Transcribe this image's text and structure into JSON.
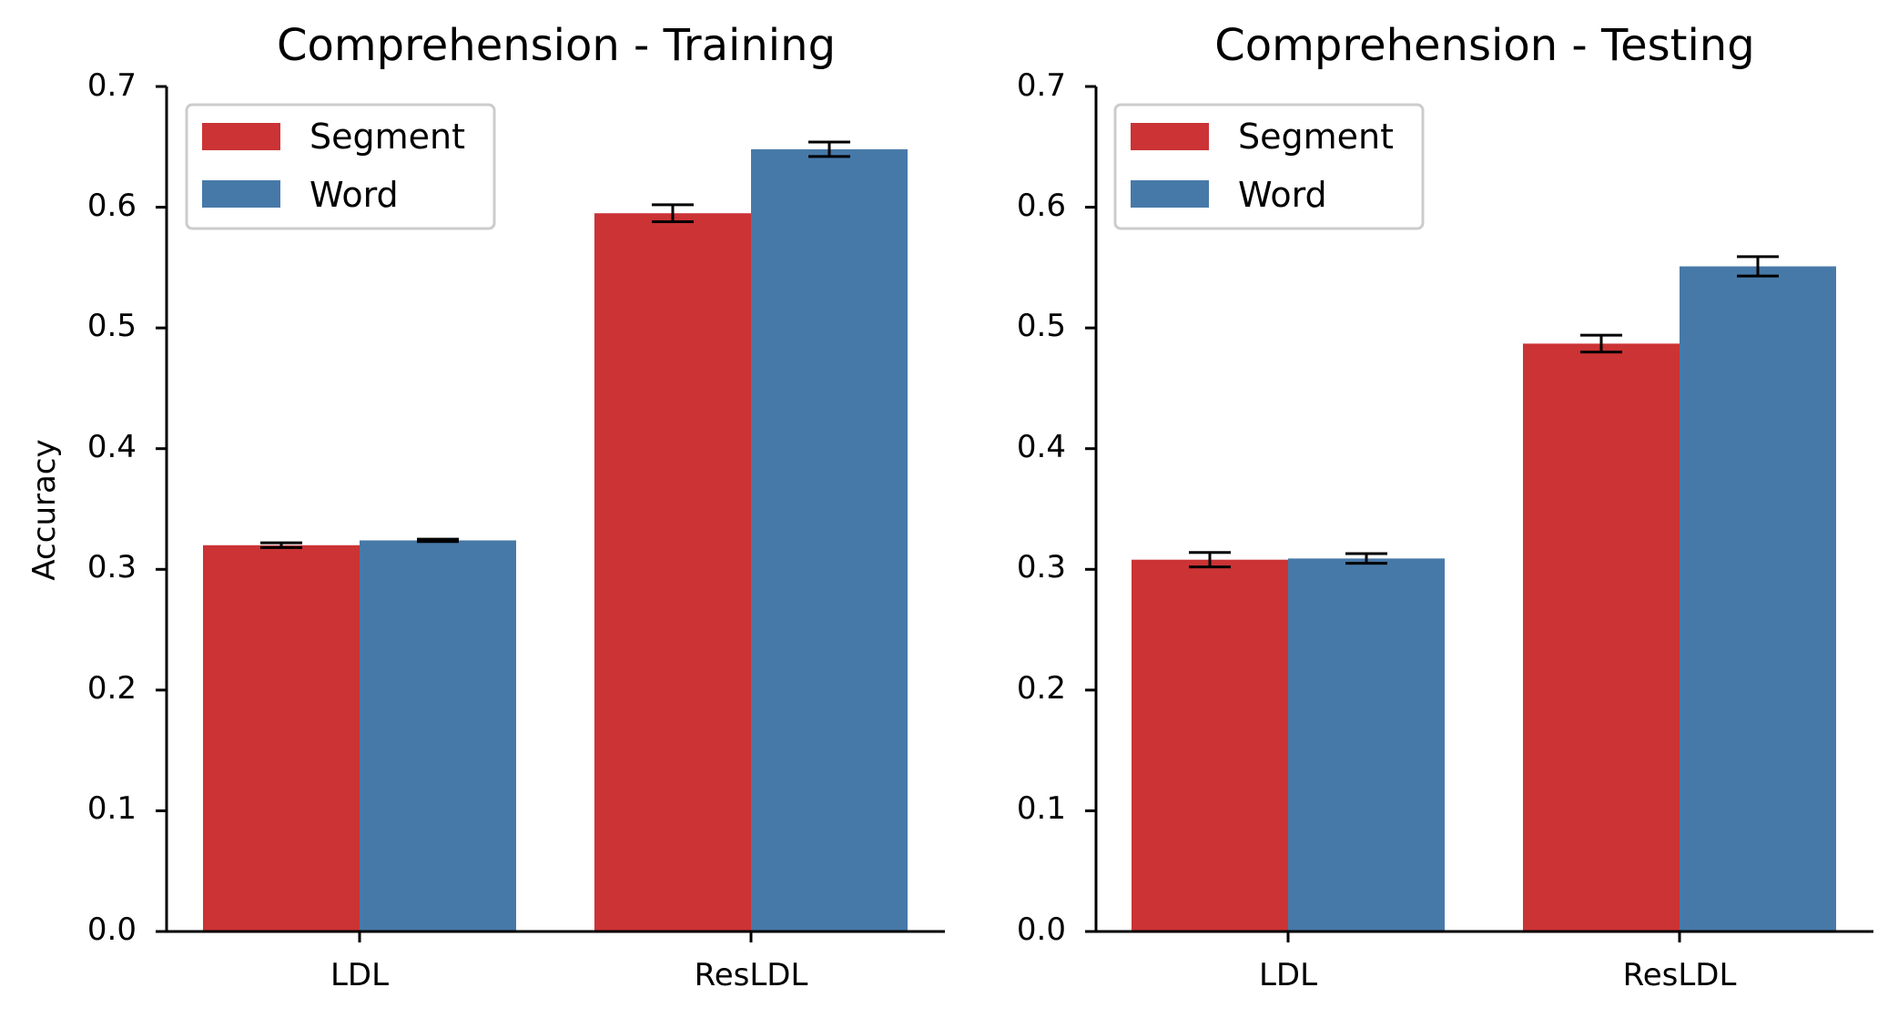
{
  "chart_data": [
    {
      "type": "bar",
      "title": "Comprehension - Training",
      "xlabel": "",
      "ylabel": "Accuracy",
      "ylim": [
        0,
        0.7
      ],
      "yticks": [
        "0.0",
        "0.1",
        "0.2",
        "0.3",
        "0.4",
        "0.5",
        "0.6",
        "0.7"
      ],
      "categories": [
        "LDL",
        "ResLDL"
      ],
      "legend_position": "top-left",
      "series": [
        {
          "name": "Segment",
          "color": "#cb3335",
          "values": [
            0.32,
            0.595
          ],
          "errors": [
            0.002,
            0.007
          ]
        },
        {
          "name": "Word",
          "color": "#4779a8",
          "values": [
            0.324,
            0.648
          ],
          "errors": [
            0.001,
            0.006
          ]
        }
      ]
    },
    {
      "type": "bar",
      "title": "Comprehension - Testing",
      "xlabel": "",
      "ylabel": "",
      "ylim": [
        0,
        0.7
      ],
      "yticks": [
        "0.0",
        "0.1",
        "0.2",
        "0.3",
        "0.4",
        "0.5",
        "0.6",
        "0.7"
      ],
      "categories": [
        "LDL",
        "ResLDL"
      ],
      "legend_position": "top-left",
      "series": [
        {
          "name": "Segment",
          "color": "#cb3335",
          "values": [
            0.308,
            0.487
          ],
          "errors": [
            0.006,
            0.007
          ]
        },
        {
          "name": "Word",
          "color": "#4779a8",
          "values": [
            0.309,
            0.551
          ],
          "errors": [
            0.004,
            0.008
          ]
        }
      ]
    }
  ]
}
